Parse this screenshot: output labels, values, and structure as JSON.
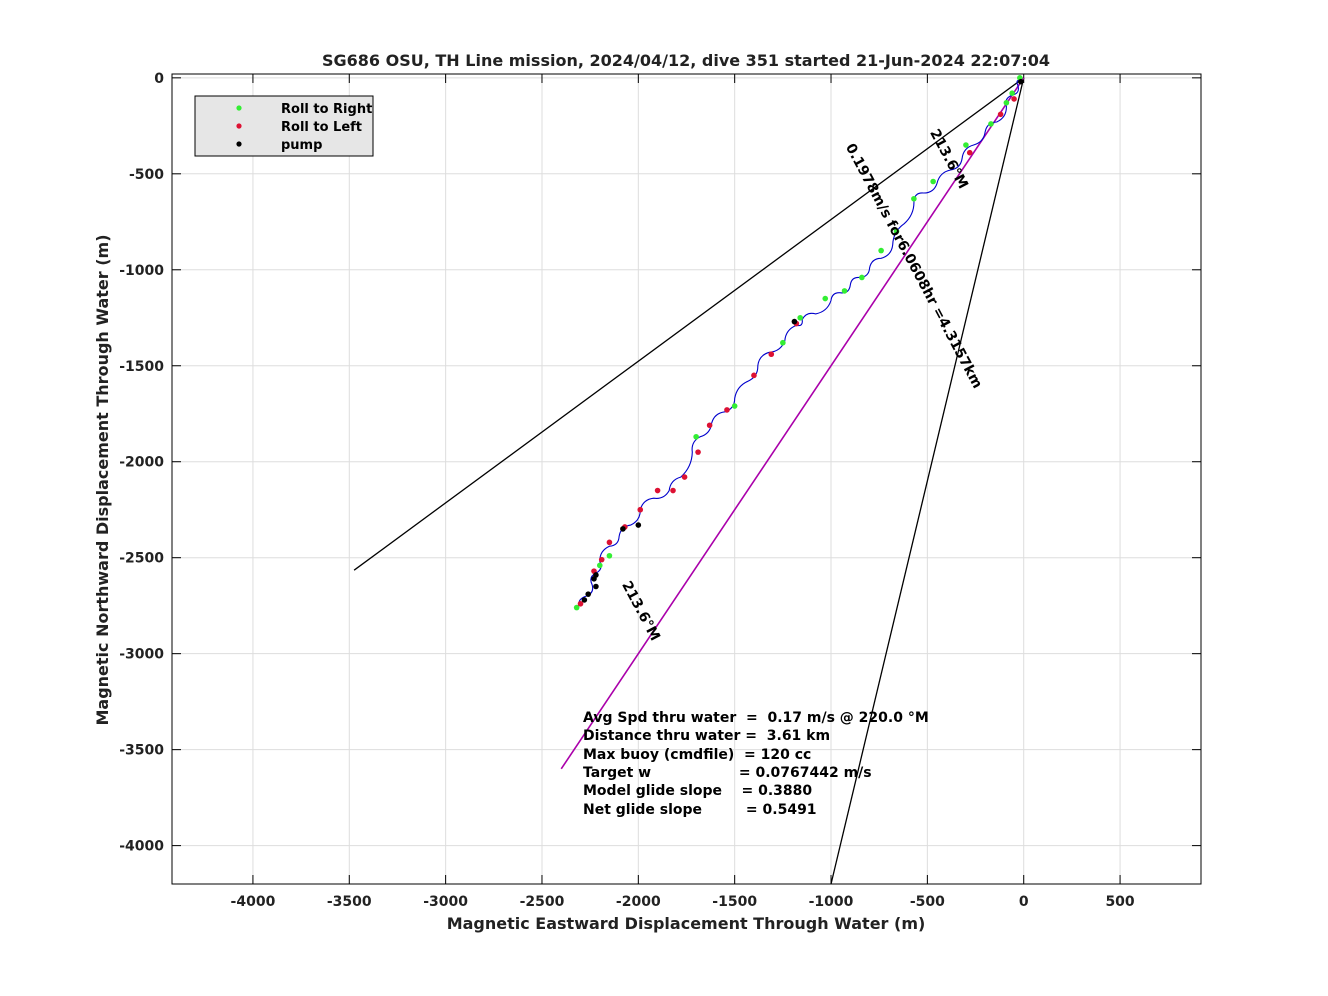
{
  "colors": {
    "roll_right": "#33ee33",
    "roll_left": "#dd1133",
    "pump": "#000000",
    "track": "#0000cc",
    "heading_line": "#000000",
    "drift_line": "#aa00aa"
  },
  "chart_data": {
    "type": "scatter",
    "title": "SG686 OSU, TH Line mission, 2024/04/12, dive 351 started 21-Jun-2024 22:07:04",
    "xlabel": "Magnetic Eastward Displacement Through Water (m)",
    "ylabel": "Magnetic Northward Displacement Through Water (m)",
    "xlim": [
      -4420,
      920
    ],
    "ylim": [
      -4200,
      20
    ],
    "xticks": [
      "-4000",
      "-3500",
      "-3000",
      "-2500",
      "-2000",
      "-1500",
      "-1000",
      "-500",
      "0",
      "500"
    ],
    "yticks": [
      "0",
      "-500",
      "-1000",
      "-1500",
      "-2000",
      "-2500",
      "-3000",
      "-3500",
      "-4000"
    ],
    "grid": true,
    "legend_position": "top-left",
    "legend": [
      "Roll to Right",
      "Roll to Left",
      "pump"
    ],
    "lines": {
      "heading_upper": [
        [
          0,
          0
        ],
        [
          -3475,
          -2565
        ]
      ],
      "heading_lower": [
        [
          0,
          0
        ],
        [
          -1000,
          -4200
        ]
      ],
      "drift": [
        [
          0,
          0
        ],
        [
          -2400,
          -3600
        ]
      ]
    },
    "line_labels": {
      "upper_heading": "213.6°M",
      "lower_heading": "213.6°M",
      "drift": "0.1978m/s for6.0608hr =4.3157km"
    },
    "track": [
      [
        -10,
        -10
      ],
      [
        -30,
        -40
      ],
      [
        -60,
        -90
      ],
      [
        -90,
        -150
      ],
      [
        -140,
        -230
      ],
      [
        -200,
        -280
      ],
      [
        -260,
        -350
      ],
      [
        -320,
        -420
      ],
      [
        -380,
        -480
      ],
      [
        -450,
        -550
      ],
      [
        -520,
        -600
      ],
      [
        -570,
        -640
      ],
      [
        -620,
        -760
      ],
      [
        -680,
        -870
      ],
      [
        -740,
        -940
      ],
      [
        -800,
        -990
      ],
      [
        -850,
        -1040
      ],
      [
        -900,
        -1080
      ],
      [
        -950,
        -1120
      ],
      [
        -1000,
        -1160
      ],
      [
        -1080,
        -1230
      ],
      [
        -1150,
        -1260
      ],
      [
        -1180,
        -1290
      ],
      [
        -1240,
        -1370
      ],
      [
        -1320,
        -1430
      ],
      [
        -1380,
        -1500
      ],
      [
        -1430,
        -1580
      ],
      [
        -1500,
        -1670
      ],
      [
        -1550,
        -1740
      ],
      [
        -1620,
        -1800
      ],
      [
        -1680,
        -1870
      ],
      [
        -1720,
        -1950
      ],
      [
        -1780,
        -2080
      ],
      [
        -1840,
        -2150
      ],
      [
        -1920,
        -2190
      ],
      [
        -1990,
        -2250
      ],
      [
        -2040,
        -2330
      ],
      [
        -2100,
        -2390
      ],
      [
        -2150,
        -2440
      ],
      [
        -2200,
        -2520
      ],
      [
        -2220,
        -2580
      ],
      [
        -2240,
        -2640
      ],
      [
        -2270,
        -2700
      ],
      [
        -2310,
        -2760
      ]
    ],
    "roll_right": [
      [
        -20,
        0
      ],
      [
        -60,
        -80
      ],
      [
        -90,
        -130
      ],
      [
        -170,
        -240
      ],
      [
        -300,
        -350
      ],
      [
        -470,
        -540
      ],
      [
        -570,
        -630
      ],
      [
        -660,
        -800
      ],
      [
        -740,
        -900
      ],
      [
        -840,
        -1040
      ],
      [
        -930,
        -1110
      ],
      [
        -1030,
        -1150
      ],
      [
        -1160,
        -1250
      ],
      [
        -1250,
        -1380
      ],
      [
        -1500,
        -1710
      ],
      [
        -1700,
        -1870
      ],
      [
        -2150,
        -2490
      ],
      [
        -2200,
        -2540
      ],
      [
        -2320,
        -2760
      ]
    ],
    "roll_left": [
      [
        -50,
        -110
      ],
      [
        -120,
        -190
      ],
      [
        -280,
        -390
      ],
      [
        -1180,
        -1280
      ],
      [
        -1310,
        -1440
      ],
      [
        -1400,
        -1550
      ],
      [
        -1540,
        -1730
      ],
      [
        -1630,
        -1810
      ],
      [
        -1690,
        -1950
      ],
      [
        -1760,
        -2080
      ],
      [
        -1820,
        -2150
      ],
      [
        -1900,
        -2150
      ],
      [
        -1990,
        -2250
      ],
      [
        -2070,
        -2340
      ],
      [
        -2150,
        -2420
      ],
      [
        -2190,
        -2510
      ],
      [
        -2230,
        -2570
      ],
      [
        -2300,
        -2740
      ]
    ],
    "pump": [
      [
        -15,
        -20
      ],
      [
        -1190,
        -1270
      ],
      [
        -2000,
        -2330
      ],
      [
        -2080,
        -2350
      ],
      [
        -2220,
        -2590
      ],
      [
        -2230,
        -2610
      ],
      [
        -2220,
        -2650
      ],
      [
        -2260,
        -2690
      ],
      [
        -2280,
        -2720
      ]
    ],
    "annotations": [
      "Avg Spd thru water  =  0.17 m/s @ 220.0 °M",
      "Distance thru water =  3.61 km",
      "Max buoy (cmdfile)  = 120 cc",
      "Target w                  = 0.0767442 m/s",
      "Model glide slope    = 0.3880",
      "Net glide slope         = 0.5491"
    ]
  }
}
